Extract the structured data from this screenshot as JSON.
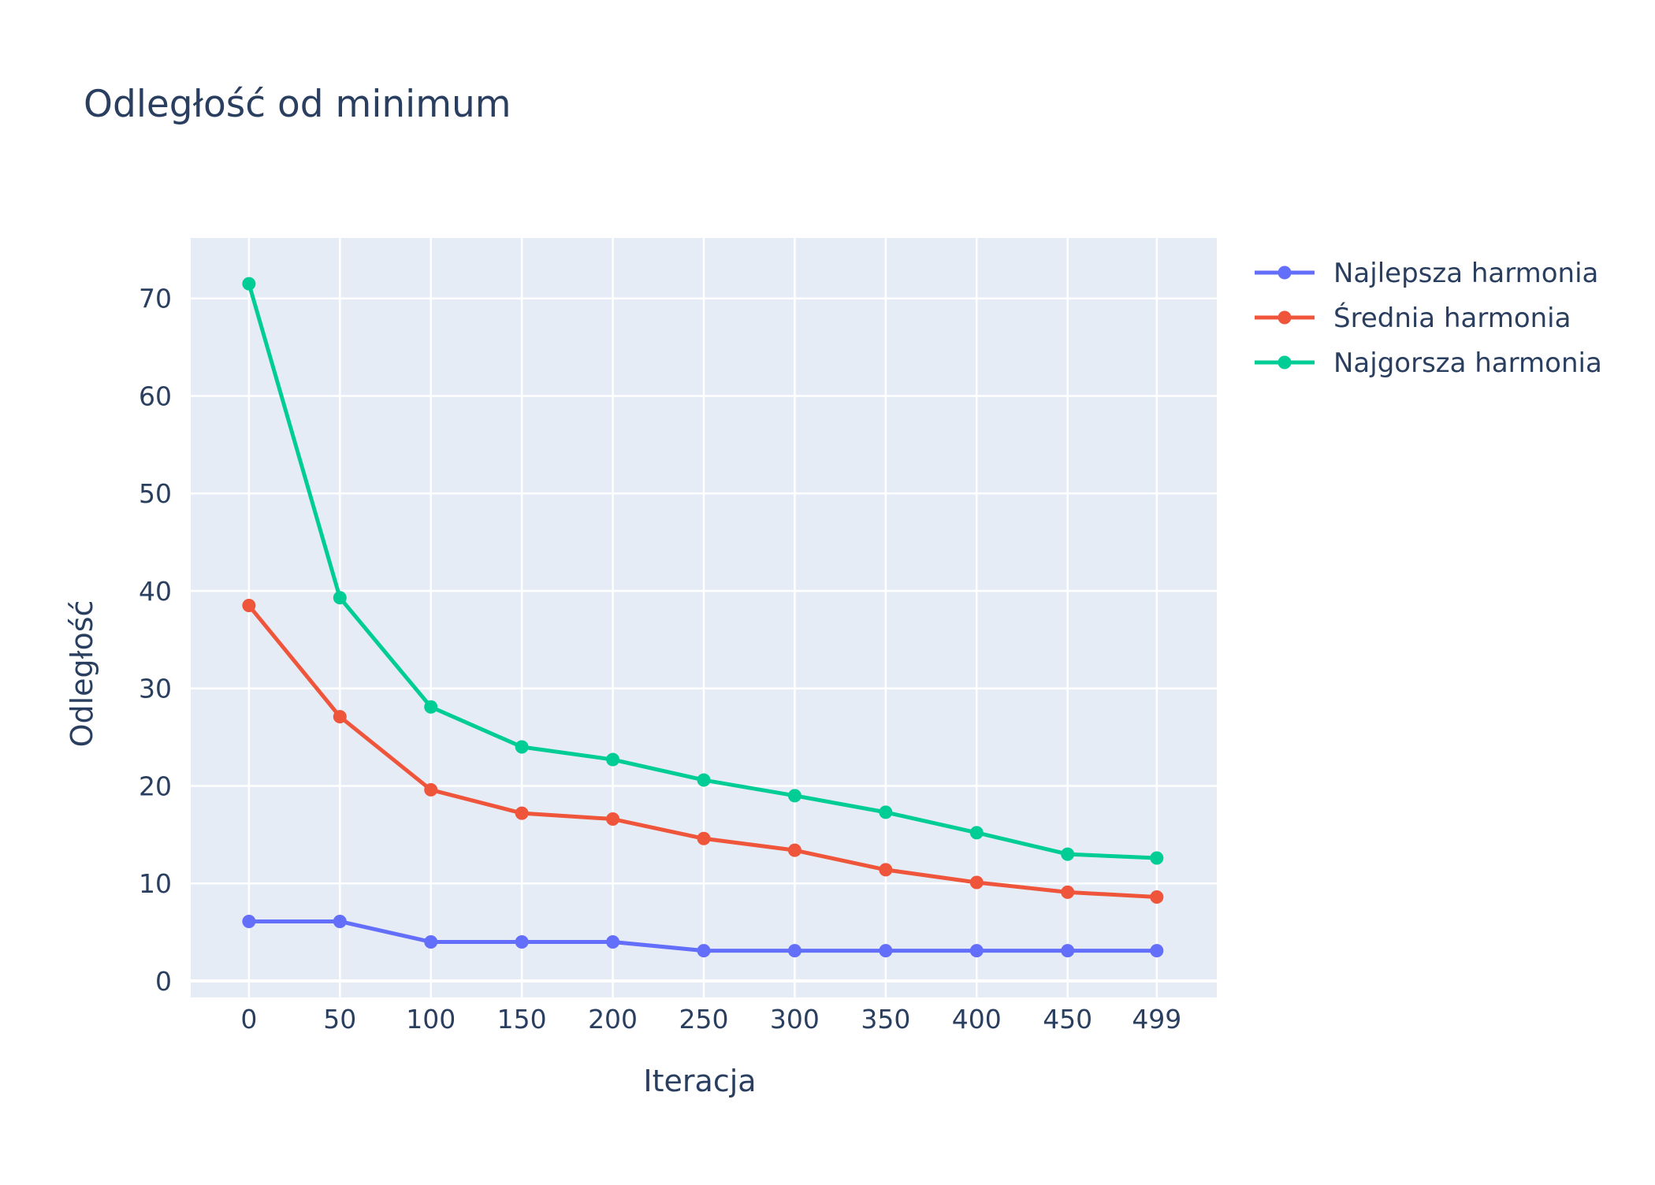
{
  "chart_data": {
    "type": "line",
    "title": "Odległość od minimum",
    "xlabel": "Iteracja",
    "ylabel": "Odległość",
    "x": [
      0,
      50,
      100,
      150,
      200,
      250,
      300,
      350,
      400,
      450,
      499
    ],
    "x_tick_labels": [
      "0",
      "50",
      "100",
      "150",
      "200",
      "250",
      "300",
      "350",
      "400",
      "450",
      "499"
    ],
    "y_ticks": [
      0,
      10,
      20,
      30,
      40,
      50,
      60,
      70
    ],
    "xlim": [
      -32,
      532
    ],
    "ylim": [
      -1.7,
      76.2
    ],
    "grid": true,
    "legend_position": "right",
    "series": [
      {
        "name": "Najlepsza harmonia",
        "color": "#636efa",
        "values": [
          6.1,
          6.1,
          4.0,
          4.0,
          4.0,
          3.1,
          3.1,
          3.1,
          3.1,
          3.1,
          3.1
        ]
      },
      {
        "name": "Średnia harmonia",
        "color": "#ef553b",
        "values": [
          38.5,
          27.1,
          19.6,
          17.2,
          16.6,
          14.6,
          13.4,
          11.4,
          10.1,
          9.1,
          8.6
        ]
      },
      {
        "name": "Najgorsza harmonia",
        "color": "#00cc96",
        "values": [
          71.5,
          39.3,
          28.1,
          24.0,
          22.7,
          20.6,
          19.0,
          17.3,
          15.2,
          13.0,
          12.6
        ]
      }
    ]
  }
}
